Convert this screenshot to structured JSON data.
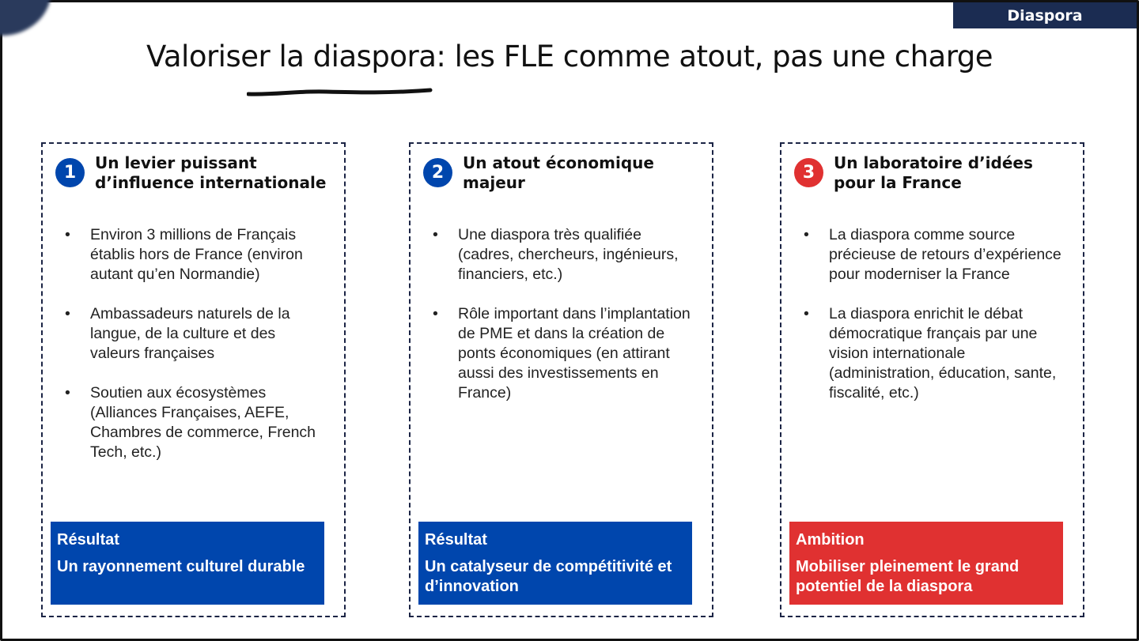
{
  "tag": "Diaspora",
  "title": "Valoriser la diaspora: les FLE comme atout, pas une charge",
  "colors": {
    "blue": "#0046ad",
    "red": "#e03131",
    "navy": "#1b2c52"
  },
  "columns": [
    {
      "number": "1",
      "heading": "Un levier puissant d’influence internationale",
      "bullets": [
        "Environ 3 millions de Français établis hors de France (environ autant qu’en Normandie)",
        "Ambassadeurs naturels de la langue, de la culture et des valeurs françaises",
        "Soutien aux écosystèmes (Alliances Françaises, AEFE, Chambres de commerce, French Tech, etc.)"
      ],
      "box_label": "Résultat",
      "box_text": "Un rayonnement culturel durable"
    },
    {
      "number": "2",
      "heading": "Un atout économique majeur",
      "bullets": [
        "Une diaspora très qualifiée (cadres, chercheurs, ingénieurs, financiers, etc.)",
        "Rôle important dans l’implantation de PME et dans la création de ponts économiques (en attirant aussi des investissements en France)"
      ],
      "box_label": "Résultat",
      "box_text": "Un catalyseur de compétitivité et d’innovation"
    },
    {
      "number": "3",
      "heading": "Un laboratoire d’idées pour la France",
      "bullets": [
        "La diaspora comme source précieuse de retours d’expérience pour moderniser la France",
        "La diaspora enrichit le débat démocratique français par une vision internationale (administration, éducation, sante, fiscalité, etc.)"
      ],
      "box_label": "Ambition",
      "box_text": "Mobiliser pleinement le grand potentiel de la diaspora"
    }
  ]
}
